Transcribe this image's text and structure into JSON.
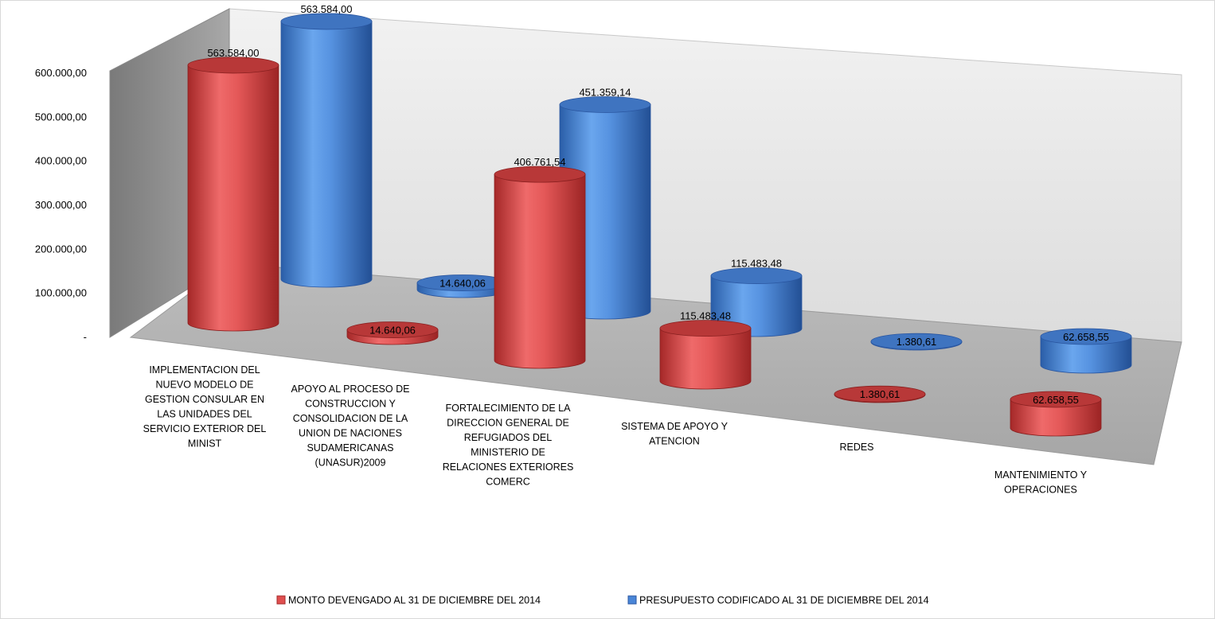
{
  "chart_data": {
    "type": "bar",
    "style": "3d-cylinder",
    "categories": [
      "IMPLEMENTACION DEL NUEVO MODELO DE GESTION CONSULAR EN LAS UNIDADES DEL SERVICIO EXTERIOR DEL MINIST",
      "APOYO AL PROCESO DE CONSTRUCCION Y CONSOLIDACION DE LA UNION DE NACIONES SUDAMERICANAS (UNASUR)2009",
      "FORTALECIMIENTO DE LA DIRECCION GENERAL DE REFUGIADOS DEL MINISTERIO DE RELACIONES EXTERIORES COMERC",
      "SISTEMA DE APOYO Y ATENCION",
      "REDES",
      "MANTENIMIENTO Y OPERACIONES"
    ],
    "category_lines": [
      [
        "IMPLEMENTACION DEL",
        "NUEVO MODELO DE",
        "GESTION CONSULAR EN",
        "LAS UNIDADES DEL",
        "SERVICIO EXTERIOR DEL",
        "MINIST"
      ],
      [
        "APOYO AL PROCESO DE",
        "CONSTRUCCION Y",
        "CONSOLIDACION DE LA",
        "UNION DE NACIONES",
        "SUDAMERICANAS",
        "(UNASUR)2009"
      ],
      [
        "FORTALECIMIENTO DE LA",
        "DIRECCION GENERAL DE",
        "REFUGIADOS DEL",
        "MINISTERIO DE",
        "RELACIONES EXTERIORES",
        "COMERC"
      ],
      [
        "SISTEMA DE APOYO Y",
        "ATENCION"
      ],
      [
        "REDES"
      ],
      [
        "MANTENIMIENTO Y",
        "OPERACIONES"
      ]
    ],
    "series": [
      {
        "name": "MONTO DEVENGADO AL 31 DE DICIEMBRE DEL 2014",
        "color": "#e05050",
        "values": [
          563584.0,
          14640.06,
          406761.54,
          115483.48,
          1380.61,
          62658.55
        ],
        "labels": [
          "563.584,00",
          "14.640,06",
          "406.761,54",
          "115.483,48",
          "1.380,61",
          "62.658,55"
        ]
      },
      {
        "name": "PRESUPUESTO CODIFICADO AL 31 DE DICIEMBRE DEL 2014",
        "color": "#4a86d8",
        "values": [
          563584.0,
          14640.06,
          451359.14,
          115483.48,
          1380.61,
          62658.55
        ],
        "labels": [
          "563.584,00",
          "14.640,06",
          "451.359,14",
          "115.483,48",
          "1.380,61",
          "62.658,55"
        ]
      }
    ],
    "yticks": [
      "-",
      "100.000,00",
      "200.000,00",
      "300.000,00",
      "400.000,00",
      "500.000,00",
      "600.000,00"
    ],
    "ylim": [
      0,
      600000
    ],
    "legend_position": "bottom",
    "grid": false,
    "title": "",
    "xlabel": "",
    "ylabel": ""
  }
}
